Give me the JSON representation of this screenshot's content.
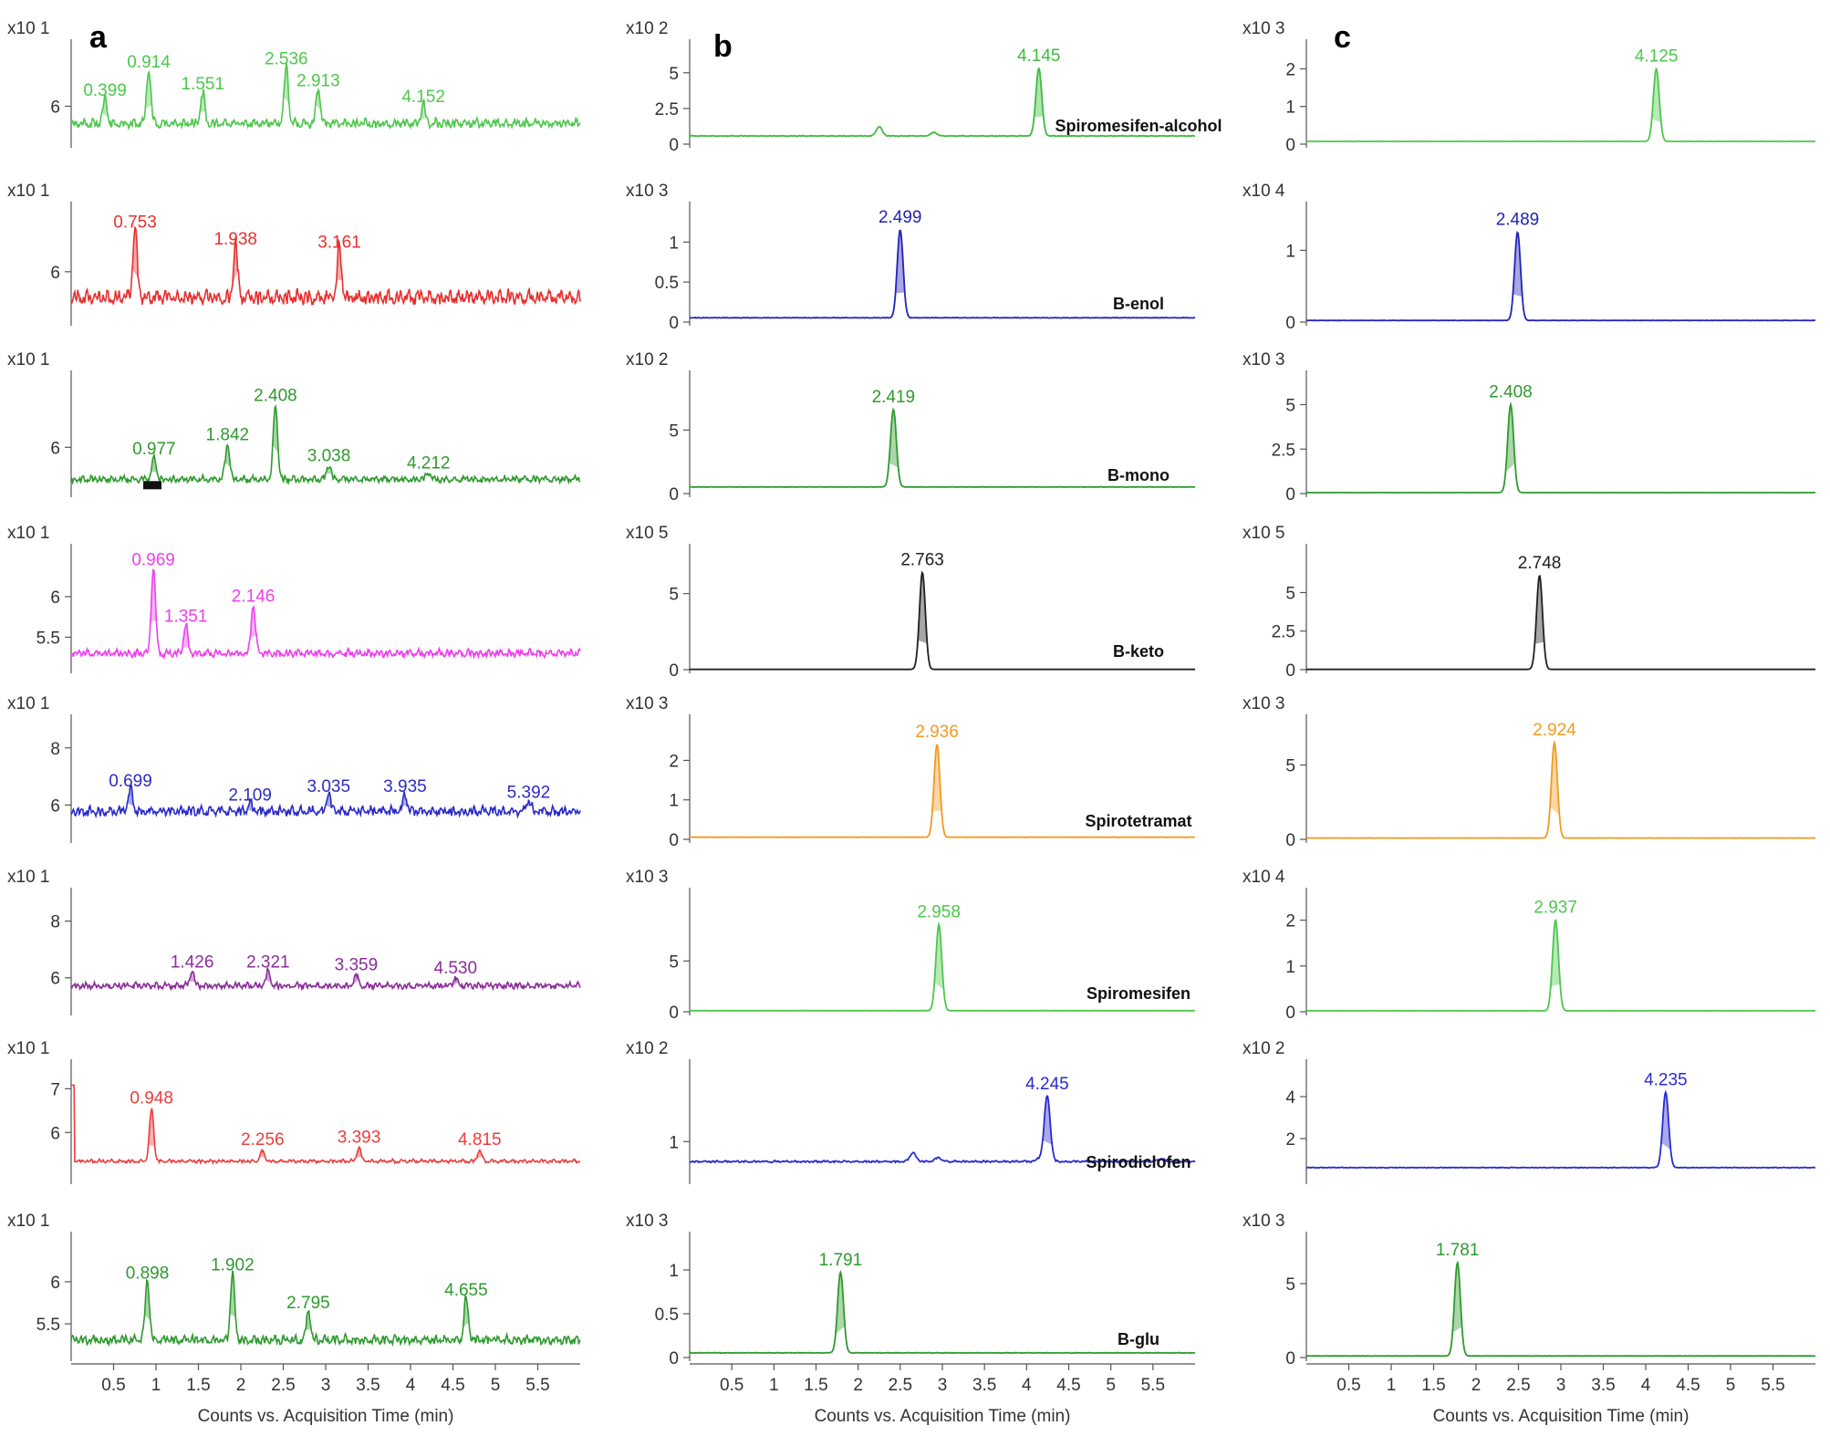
{
  "figure": {
    "x_axis_label": "Counts vs. Acquisition Time (min)",
    "x_ticks": [
      "0.5",
      "1",
      "1.5",
      "2",
      "2.5",
      "3",
      "3.5",
      "4",
      "4.5",
      "5",
      "5.5"
    ],
    "x_range": [
      0,
      6
    ],
    "columns": [
      "a",
      "b",
      "c"
    ],
    "analytes": [
      "Spiromesifen-alcohol",
      "B-enol",
      "B-mono",
      "B-keto",
      "Spirotetramat",
      "Spiromesifen",
      "Spirodiclofen",
      "B-glu"
    ]
  },
  "chart_data": [
    {
      "type": "line",
      "panel": "a",
      "row": 1,
      "analyte": "Spiromesifen-alcohol",
      "color": "#4dc74d",
      "scale_label": "x10 1",
      "y_ticks": [
        "6"
      ],
      "y_tick_values": [
        6
      ],
      "ylim": [
        4.8,
        7.6
      ],
      "baseline": 5.3,
      "noise": 0.18,
      "seed": 11,
      "annotated": false,
      "peaks": [
        {
          "rt": 0.399,
          "h": 6.1,
          "label": "0.399"
        },
        {
          "rt": 0.914,
          "h": 7.0,
          "label": "0.914"
        },
        {
          "rt": 1.551,
          "h": 6.3,
          "label": "1.551"
        },
        {
          "rt": 2.536,
          "h": 7.1,
          "label": "2.536"
        },
        {
          "rt": 2.913,
          "h": 6.4,
          "label": "2.913"
        },
        {
          "rt": 4.152,
          "h": 5.9,
          "label": "4.152"
        }
      ]
    },
    {
      "type": "line",
      "panel": "a",
      "row": 2,
      "analyte": "B-enol",
      "color": "#e82f2f",
      "scale_label": "x10 1",
      "y_ticks": [
        "6"
      ],
      "y_tick_values": [
        6
      ],
      "ylim": [
        4.5,
        7.6
      ],
      "baseline": 5.0,
      "noise": 0.28,
      "seed": 23,
      "annotated": false,
      "peaks": [
        {
          "rt": 0.753,
          "h": 7.1,
          "label": "0.753"
        },
        {
          "rt": 1.938,
          "h": 6.6,
          "label": "1.938"
        },
        {
          "rt": 3.161,
          "h": 6.5,
          "label": "3.161"
        }
      ]
    },
    {
      "type": "line",
      "panel": "a",
      "row": 3,
      "analyte": "B-mono",
      "color": "#2e9a2e",
      "scale_label": "x10 1",
      "y_ticks": [
        "6"
      ],
      "y_tick_values": [
        6
      ],
      "ylim": [
        4.7,
        7.7
      ],
      "baseline": 5.0,
      "noise": 0.12,
      "seed": 37,
      "annotated": false,
      "peaks": [
        {
          "rt": 0.977,
          "h": 5.6,
          "label": "0.977"
        },
        {
          "rt": 1.842,
          "h": 6.0,
          "label": "1.842"
        },
        {
          "rt": 2.408,
          "h": 7.1,
          "label": "2.408"
        },
        {
          "rt": 3.038,
          "h": 5.4,
          "label": "3.038"
        },
        {
          "rt": 4.212,
          "h": 5.2,
          "label": "4.212"
        }
      ]
    },
    {
      "type": "line",
      "panel": "a",
      "row": 4,
      "analyte": "B-keto",
      "color": "#ee3fee",
      "scale_label": "x10 1",
      "y_ticks": [
        "6",
        "5.5"
      ],
      "y_tick_values": [
        6,
        5.5
      ],
      "ylim": [
        5.1,
        6.45
      ],
      "baseline": 5.25,
      "noise": 0.06,
      "seed": 41,
      "annotated": false,
      "peaks": [
        {
          "rt": 0.969,
          "h": 6.3,
          "label": "0.969"
        },
        {
          "rt": 1.351,
          "h": 5.6,
          "label": "1.351"
        },
        {
          "rt": 2.146,
          "h": 5.85,
          "label": "2.146"
        }
      ]
    },
    {
      "type": "line",
      "panel": "a",
      "row": 5,
      "analyte": "Spirotetramat",
      "color": "#2b2bc8",
      "scale_label": "x10 1",
      "y_ticks": [
        "8",
        "6"
      ],
      "y_tick_values": [
        8,
        6
      ],
      "ylim": [
        4.8,
        8.6
      ],
      "baseline": 5.6,
      "noise": 0.22,
      "seed": 53,
      "annotated": false,
      "peaks": [
        {
          "rt": 0.699,
          "h": 6.4,
          "label": "0.699"
        },
        {
          "rt": 2.109,
          "h": 5.9,
          "label": "2.109"
        },
        {
          "rt": 3.035,
          "h": 6.2,
          "label": "3.035"
        },
        {
          "rt": 3.935,
          "h": 6.2,
          "label": "3.935"
        },
        {
          "rt": 5.392,
          "h": 6.0,
          "label": "5.392"
        }
      ]
    },
    {
      "type": "line",
      "panel": "a",
      "row": 6,
      "analyte": "Spiromesifen",
      "color": "#8c2c9a",
      "scale_label": "x10 1",
      "y_ticks": [
        "8",
        "6"
      ],
      "y_tick_values": [
        8,
        6
      ],
      "ylim": [
        4.8,
        8.6
      ],
      "baseline": 5.6,
      "noise": 0.14,
      "seed": 67,
      "annotated": false,
      "peaks": [
        {
          "rt": 1.426,
          "h": 6.1,
          "label": "1.426"
        },
        {
          "rt": 2.321,
          "h": 6.1,
          "label": "2.321"
        },
        {
          "rt": 3.359,
          "h": 6.0,
          "label": "3.359"
        },
        {
          "rt": 4.53,
          "h": 5.9,
          "label": "4.530"
        }
      ]
    },
    {
      "type": "line",
      "panel": "a",
      "row": 7,
      "analyte": "Spirodiclofen",
      "color": "#ee3b3b",
      "scale_label": "x10 1",
      "y_ticks": [
        "7",
        "6"
      ],
      "y_tick_values": [
        7,
        6
      ],
      "ylim": [
        4.9,
        7.3
      ],
      "baseline": 5.3,
      "noise": 0.05,
      "seed": 71,
      "annotated": false,
      "first_spike": true,
      "peaks": [
        {
          "rt": 0.948,
          "h": 6.5,
          "label": "0.948"
        },
        {
          "rt": 2.256,
          "h": 5.55,
          "label": "2.256"
        },
        {
          "rt": 3.393,
          "h": 5.6,
          "label": "3.393"
        },
        {
          "rt": 4.815,
          "h": 5.55,
          "label": "4.815"
        }
      ]
    },
    {
      "type": "line",
      "panel": "a",
      "row": 8,
      "analyte": "B-glu",
      "color": "#2e9a2e",
      "scale_label": "x10 1",
      "y_ticks": [
        "6",
        "5.5"
      ],
      "y_tick_values": [
        6,
        5.5
      ],
      "ylim": [
        5.1,
        6.4
      ],
      "baseline": 5.25,
      "noise": 0.07,
      "seed": 83,
      "annotated": false,
      "peaks": [
        {
          "rt": 0.898,
          "h": 5.95,
          "label": "0.898"
        },
        {
          "rt": 1.902,
          "h": 6.05,
          "label": "1.902"
        },
        {
          "rt": 2.795,
          "h": 5.6,
          "label": "2.795"
        },
        {
          "rt": 4.655,
          "h": 5.75,
          "label": "4.655"
        }
      ]
    },
    {
      "type": "line",
      "panel": "b",
      "row": 1,
      "analyte": "Spiromesifen-alcohol",
      "color": "#3dbb3d",
      "scale_label": "x10 2",
      "y_ticks": [
        "5",
        "2.5",
        "0"
      ],
      "y_tick_values": [
        5,
        2.5,
        0
      ],
      "ylim": [
        0,
        6.2
      ],
      "baseline": 0.55,
      "noise": 0.03,
      "seed": 101,
      "annotated": true,
      "peaks": [
        {
          "rt": 4.145,
          "h": 5.3,
          "label": "4.145"
        }
      ],
      "minor": [
        {
          "rt": 2.25,
          "h": 1.2
        },
        {
          "rt": 2.9,
          "h": 0.8
        }
      ]
    },
    {
      "type": "line",
      "panel": "b",
      "row": 2,
      "analyte": "B-enol",
      "color": "#2323b8",
      "scale_label": "x10 3",
      "y_ticks": [
        "1",
        "0.5",
        "0"
      ],
      "y_tick_values": [
        1,
        0.5,
        0
      ],
      "ylim": [
        0,
        1.3
      ],
      "baseline": 0.05,
      "noise": 0.004,
      "seed": 113,
      "annotated": true,
      "peaks": [
        {
          "rt": 2.499,
          "h": 1.15,
          "label": "2.499"
        }
      ]
    },
    {
      "type": "line",
      "panel": "b",
      "row": 3,
      "analyte": "B-mono",
      "color": "#2e9a2e",
      "scale_label": "x10 2",
      "y_ticks": [
        "5",
        "0"
      ],
      "y_tick_values": [
        5,
        0
      ],
      "ylim": [
        0,
        8.4
      ],
      "baseline": 0.5,
      "noise": 0.02,
      "seed": 127,
      "annotated": true,
      "peaks": [
        {
          "rt": 2.419,
          "h": 6.6,
          "label": "2.419"
        }
      ]
    },
    {
      "type": "line",
      "panel": "b",
      "row": 4,
      "analyte": "B-keto",
      "color": "#202020",
      "scale_label": "x10 5",
      "y_ticks": [
        "5",
        "0"
      ],
      "y_tick_values": [
        5,
        0
      ],
      "ylim": [
        0,
        7.2
      ],
      "baseline": 0.02,
      "noise": 0.0,
      "seed": 131,
      "annotated": true,
      "peaks": [
        {
          "rt": 2.763,
          "h": 6.4,
          "label": "2.763"
        }
      ]
    },
    {
      "type": "line",
      "panel": "b",
      "row": 5,
      "analyte": "Spirotetramat",
      "color": "#f29a1f",
      "scale_label": "x10 3",
      "y_ticks": [
        "2",
        "1",
        "0"
      ],
      "y_tick_values": [
        2,
        1,
        0
      ],
      "ylim": [
        0,
        2.75
      ],
      "baseline": 0.05,
      "noise": 0.005,
      "seed": 137,
      "annotated": true,
      "peaks": [
        {
          "rt": 2.936,
          "h": 2.4,
          "label": "2.936"
        }
      ]
    },
    {
      "type": "line",
      "panel": "b",
      "row": 6,
      "analyte": "Spiromesifen",
      "color": "#4dc74d",
      "scale_label": "x10 3",
      "y_ticks": [
        "5",
        "0"
      ],
      "y_tick_values": [
        5,
        0
      ],
      "ylim": [
        0,
        10.6
      ],
      "baseline": 0.1,
      "noise": 0.01,
      "seed": 139,
      "annotated": true,
      "peaks": [
        {
          "rt": 2.958,
          "h": 8.6,
          "label": "2.958"
        }
      ]
    },
    {
      "type": "line",
      "panel": "b",
      "row": 7,
      "analyte": "Spirodiclofen",
      "color": "#2a2ad0",
      "scale_label": "x10 2",
      "y_ticks": [
        "1"
      ],
      "y_tick_values": [
        1
      ],
      "ylim": [
        0.35,
        2.1
      ],
      "baseline": 0.65,
      "noise": 0.02,
      "seed": 149,
      "annotated": true,
      "peaks": [
        {
          "rt": 4.245,
          "h": 1.75,
          "label": "4.245"
        }
      ],
      "minor": [
        {
          "rt": 2.65,
          "h": 0.8
        },
        {
          "rt": 2.95,
          "h": 0.72
        },
        {
          "rt": 4.15,
          "h": 0.7
        },
        {
          "rt": 5.6,
          "h": 0.7
        }
      ]
    },
    {
      "type": "line",
      "panel": "b",
      "row": 8,
      "analyte": "B-glu",
      "color": "#2e9a2e",
      "scale_label": "x10 3",
      "y_ticks": [
        "1",
        "0.5",
        "0"
      ],
      "y_tick_values": [
        1,
        0.5,
        0
      ],
      "ylim": [
        0,
        1.25
      ],
      "baseline": 0.05,
      "noise": 0.004,
      "seed": 151,
      "annotated": true,
      "peaks": [
        {
          "rt": 1.791,
          "h": 0.97,
          "label": "1.791"
        }
      ]
    },
    {
      "type": "line",
      "panel": "c",
      "row": 1,
      "analyte": "Spiromesifen-alcohol",
      "color": "#4dc74d",
      "scale_label": "x10 3",
      "y_ticks": [
        "2",
        "1",
        "0"
      ],
      "y_tick_values": [
        2,
        1,
        0
      ],
      "ylim": [
        0,
        2.35
      ],
      "baseline": 0.07,
      "noise": 0.004,
      "seed": 163,
      "annotated": false,
      "peaks": [
        {
          "rt": 4.125,
          "h": 2.0,
          "label": "4.125"
        }
      ]
    },
    {
      "type": "line",
      "panel": "c",
      "row": 2,
      "analyte": "B-enol",
      "color": "#2323b8",
      "scale_label": "x10 4",
      "y_ticks": [
        "1",
        "0"
      ],
      "y_tick_values": [
        1,
        0
      ],
      "ylim": [
        0,
        1.45
      ],
      "baseline": 0.02,
      "noise": 0.003,
      "seed": 167,
      "annotated": false,
      "peaks": [
        {
          "rt": 2.489,
          "h": 1.25,
          "label": "2.489"
        }
      ]
    },
    {
      "type": "line",
      "panel": "c",
      "row": 3,
      "analyte": "B-mono",
      "color": "#2e9a2e",
      "scale_label": "x10 3",
      "y_ticks": [
        "5",
        "2.5",
        "0"
      ],
      "y_tick_values": [
        5,
        2.5,
        0
      ],
      "ylim": [
        0,
        6.0
      ],
      "baseline": 0.05,
      "noise": 0.005,
      "seed": 173,
      "annotated": false,
      "peaks": [
        {
          "rt": 2.408,
          "h": 5.0,
          "label": "2.408"
        }
      ]
    },
    {
      "type": "line",
      "panel": "c",
      "row": 4,
      "analyte": "B-keto",
      "color": "#202020",
      "scale_label": "x10 5",
      "y_ticks": [
        "5",
        "2.5",
        "0"
      ],
      "y_tick_values": [
        5,
        2.5,
        0
      ],
      "ylim": [
        0,
        7.1
      ],
      "baseline": 0.02,
      "noise": 0.0,
      "seed": 179,
      "annotated": false,
      "peaks": [
        {
          "rt": 2.748,
          "h": 6.1,
          "label": "2.748"
        }
      ]
    },
    {
      "type": "line",
      "panel": "c",
      "row": 5,
      "analyte": "Spirotetramat",
      "color": "#f29a1f",
      "scale_label": "x10 3",
      "y_ticks": [
        "5",
        "0"
      ],
      "y_tick_values": [
        5,
        0
      ],
      "ylim": [
        0,
        7.3
      ],
      "baseline": 0.08,
      "noise": 0.01,
      "seed": 181,
      "annotated": false,
      "peaks": [
        {
          "rt": 2.924,
          "h": 6.5,
          "label": "2.924"
        }
      ]
    },
    {
      "type": "line",
      "panel": "c",
      "row": 6,
      "analyte": "Spiromesifen",
      "color": "#4dc74d",
      "scale_label": "x10 4",
      "y_ticks": [
        "2",
        "1",
        "0"
      ],
      "y_tick_values": [
        2,
        1,
        0
      ],
      "ylim": [
        0,
        2.35
      ],
      "baseline": 0.02,
      "noise": 0.002,
      "seed": 191,
      "annotated": false,
      "peaks": [
        {
          "rt": 2.937,
          "h": 2.0,
          "label": "2.937"
        }
      ]
    },
    {
      "type": "line",
      "panel": "c",
      "row": 7,
      "analyte": "Spirodiclofen",
      "color": "#2a2ad0",
      "scale_label": "x10 2",
      "y_ticks": [
        "4",
        "2"
      ],
      "y_tick_values": [
        4,
        2
      ],
      "ylim": [
        0,
        5.0
      ],
      "baseline": 0.6,
      "noise": 0.02,
      "seed": 193,
      "annotated": false,
      "peaks": [
        {
          "rt": 4.235,
          "h": 4.2,
          "label": "4.235"
        }
      ]
    },
    {
      "type": "line",
      "panel": "c",
      "row": 8,
      "analyte": "B-glu",
      "color": "#2e9a2e",
      "scale_label": "x10 3",
      "y_ticks": [
        "5",
        "0"
      ],
      "y_tick_values": [
        5,
        0
      ],
      "ylim": [
        0,
        7.4
      ],
      "baseline": 0.1,
      "noise": 0.01,
      "seed": 197,
      "annotated": false,
      "peaks": [
        {
          "rt": 1.781,
          "h": 6.4,
          "label": "1.781"
        }
      ]
    }
  ]
}
